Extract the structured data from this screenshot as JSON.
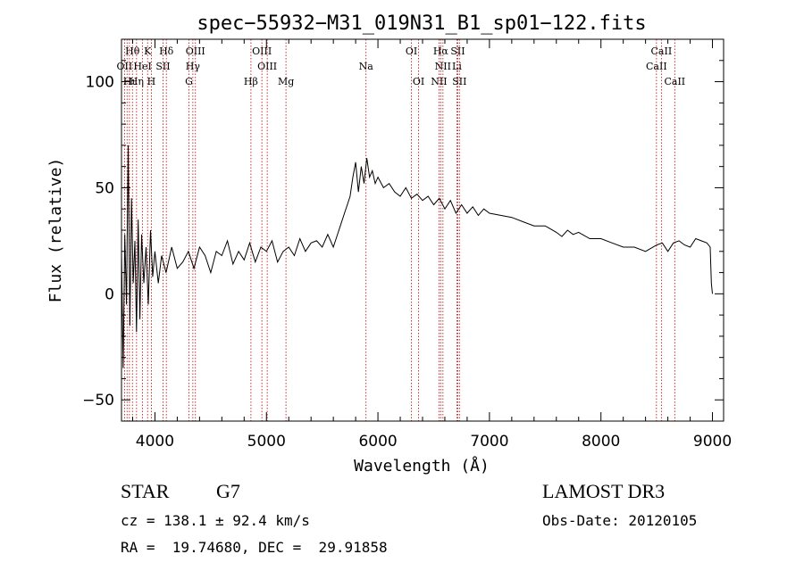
{
  "chart_data": {
    "type": "line",
    "title": "spec−55932−M31_019N31_B1_sp01−122.fits",
    "xlabel": "Wavelength (Å)",
    "ylabel": "Flux (relative)",
    "xlim": [
      3700,
      9100
    ],
    "ylim": [
      -60,
      120
    ],
    "x_ticks": [
      4000,
      5000,
      6000,
      7000,
      8000,
      9000
    ],
    "x_tick_labels": [
      "4000",
      "5000",
      "6000",
      "7000",
      "8000",
      "9000"
    ],
    "y_ticks": [
      -50,
      0,
      50,
      100
    ],
    "y_tick_labels": [
      "−50",
      "0",
      "50",
      "100"
    ],
    "series": [
      {
        "name": "flux",
        "x": [
          3700,
          3715,
          3730,
          3745,
          3760,
          3775,
          3790,
          3805,
          3820,
          3835,
          3850,
          3865,
          3880,
          3900,
          3920,
          3940,
          3960,
          3980,
          4000,
          4030,
          4060,
          4100,
          4150,
          4200,
          4250,
          4300,
          4350,
          4400,
          4450,
          4500,
          4550,
          4600,
          4650,
          4700,
          4750,
          4800,
          4850,
          4900,
          4950,
          5000,
          5050,
          5100,
          5150,
          5200,
          5250,
          5300,
          5350,
          5400,
          5450,
          5500,
          5550,
          5600,
          5650,
          5700,
          5725,
          5750,
          5775,
          5800,
          5825,
          5850,
          5875,
          5900,
          5925,
          5950,
          5975,
          6000,
          6050,
          6100,
          6150,
          6200,
          6250,
          6300,
          6350,
          6400,
          6450,
          6500,
          6550,
          6600,
          6650,
          6700,
          6750,
          6800,
          6850,
          6900,
          6950,
          7000,
          7100,
          7200,
          7300,
          7400,
          7500,
          7600,
          7650,
          7700,
          7750,
          7800,
          7900,
          8000,
          8100,
          8200,
          8300,
          8400,
          8500,
          8550,
          8600,
          8650,
          8700,
          8750,
          8800,
          8850,
          8900,
          8950,
          8980,
          8990,
          9000
        ],
        "values": [
          20,
          -35,
          28,
          -5,
          70,
          -15,
          45,
          5,
          25,
          -18,
          35,
          -12,
          28,
          5,
          22,
          -5,
          30,
          8,
          20,
          5,
          18,
          10,
          22,
          12,
          15,
          20,
          12,
          22,
          18,
          10,
          20,
          18,
          25,
          14,
          20,
          16,
          24,
          15,
          22,
          20,
          25,
          15,
          20,
          22,
          18,
          26,
          20,
          24,
          25,
          22,
          28,
          22,
          30,
          38,
          42,
          46,
          55,
          62,
          48,
          60,
          52,
          64,
          55,
          58,
          52,
          55,
          50,
          52,
          48,
          46,
          50,
          45,
          47,
          44,
          46,
          42,
          45,
          40,
          44,
          38,
          42,
          38,
          41,
          37,
          40,
          38,
          37,
          36,
          34,
          32,
          32,
          29,
          27,
          30,
          28,
          29,
          26,
          26,
          24,
          22,
          22,
          20,
          23,
          24,
          20,
          24,
          25,
          23,
          22,
          26,
          25,
          24,
          22,
          5,
          0
        ]
      }
    ],
    "line_labels": [
      {
        "text": "Hθ",
        "wavelength": 3798,
        "row": 1
      },
      {
        "text": "K",
        "wavelength": 3934,
        "row": 1
      },
      {
        "text": "Hδ",
        "wavelength": 4102,
        "row": 1
      },
      {
        "text": "OIII",
        "wavelength": 4363,
        "row": 1
      },
      {
        "text": "OIII",
        "wavelength": 4959,
        "row": 1
      },
      {
        "text": "OI",
        "wavelength": 6300,
        "row": 1
      },
      {
        "text": "Hα",
        "wavelength": 6563,
        "row": 1
      },
      {
        "text": "SII",
        "wavelength": 6716,
        "row": 1
      },
      {
        "text": "CaII",
        "wavelength": 8542,
        "row": 1
      },
      {
        "text": "OII",
        "wavelength": 3727,
        "row": 2
      },
      {
        "text": "HeI",
        "wavelength": 3889,
        "row": 2
      },
      {
        "text": "SII",
        "wavelength": 4072,
        "row": 2
      },
      {
        "text": "Hγ",
        "wavelength": 4340,
        "row": 2
      },
      {
        "text": "OIII",
        "wavelength": 5007,
        "row": 2
      },
      {
        "text": "Na",
        "wavelength": 5893,
        "row": 2
      },
      {
        "text": "NII",
        "wavelength": 6583,
        "row": 2
      },
      {
        "text": "Li",
        "wavelength": 6708,
        "row": 2
      },
      {
        "text": "CaII",
        "wavelength": 8498,
        "row": 2
      },
      {
        "text": "Hι",
        "wavelength": 3771,
        "row": 3
      },
      {
        "text": "Hη",
        "wavelength": 3835,
        "row": 3
      },
      {
        "text": "H",
        "wavelength": 3968,
        "row": 3
      },
      {
        "text": "G",
        "wavelength": 4305,
        "row": 3
      },
      {
        "text": "Hβ",
        "wavelength": 4861,
        "row": 3
      },
      {
        "text": "Mg",
        "wavelength": 5175,
        "row": 3
      },
      {
        "text": "OI",
        "wavelength": 6364,
        "row": 3
      },
      {
        "text": "NII",
        "wavelength": 6548,
        "row": 3
      },
      {
        "text": "SII",
        "wavelength": 6731,
        "row": 3
      },
      {
        "text": "CaII",
        "wavelength": 8662,
        "row": 3
      }
    ],
    "line_wavelengths": [
      3727,
      3750,
      3771,
      3798,
      3835,
      3889,
      3934,
      3968,
      4072,
      4102,
      4305,
      4340,
      4363,
      4861,
      4959,
      5007,
      5175,
      5893,
      6300,
      6364,
      6548,
      6563,
      6583,
      6708,
      6716,
      6731,
      8498,
      8542,
      8662
    ]
  },
  "info": {
    "object_class": "STAR",
    "subclass": "G7",
    "survey": "LAMOST DR3",
    "cz_line": "cz = 138.1 ± 92.4 km/s",
    "obs_date": "Obs-Date: 20120105",
    "coords": "RA =  19.74680, DEC =  29.91858"
  },
  "colors": {
    "line_markers": "#c00000",
    "spectrum": "#000000",
    "axes": "#000000"
  }
}
